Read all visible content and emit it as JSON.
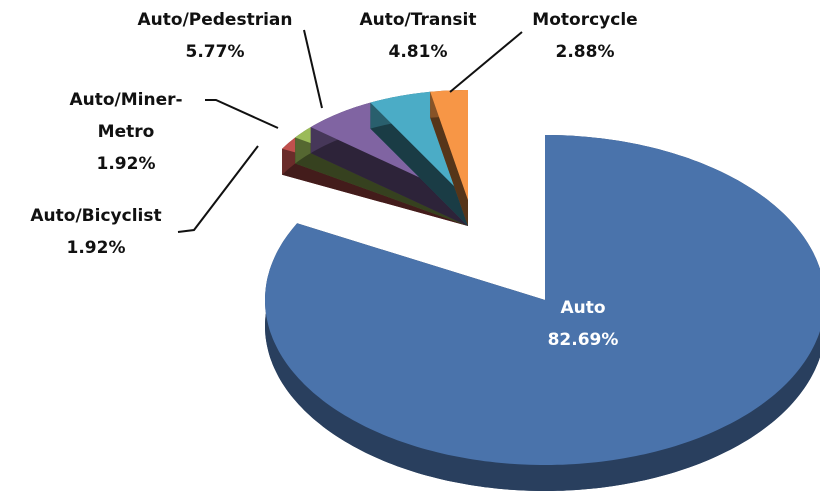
{
  "chart_data": {
    "type": "pie",
    "categories": [
      "Auto",
      "Auto/Bicyclist",
      "Auto/Miner-Metro",
      "Auto/Pedestrian",
      "Auto/Transit",
      "Motorcycle"
    ],
    "values": [
      82.69,
      1.92,
      1.92,
      5.77,
      4.81,
      2.88
    ],
    "value_labels": [
      "82.69%",
      "1.92%",
      "1.92%",
      "5.77%",
      "4.81%",
      "2.88%"
    ],
    "colors": [
      "#4a73ab",
      "#c0504d",
      "#9bbb59",
      "#8064a2",
      "#4bacc6",
      "#f79646"
    ]
  }
}
